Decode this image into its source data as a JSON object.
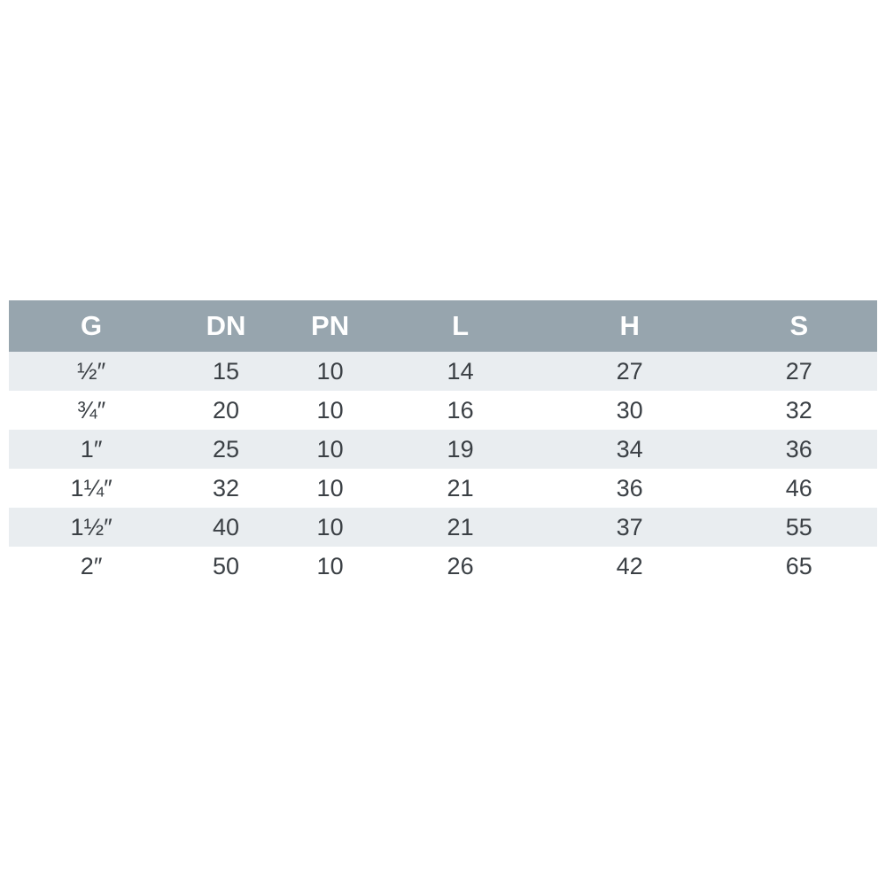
{
  "table": {
    "headers": [
      "G",
      "DN",
      "PN",
      "L",
      "H",
      "S"
    ],
    "rows": [
      [
        "½″",
        "15",
        "10",
        "14",
        "27",
        "27"
      ],
      [
        "¾″",
        "20",
        "10",
        "16",
        "30",
        "32"
      ],
      [
        "1″",
        "25",
        "10",
        "19",
        "34",
        "36"
      ],
      [
        "1¼″",
        "32",
        "10",
        "21",
        "36",
        "46"
      ],
      [
        "1½″",
        "40",
        "10",
        "21",
        "37",
        "55"
      ],
      [
        "2″",
        "50",
        "10",
        "26",
        "42",
        "65"
      ]
    ]
  },
  "chart_data": {
    "type": "table",
    "columns": [
      "G",
      "DN",
      "PN",
      "L",
      "H",
      "S"
    ],
    "rows": [
      [
        "½″",
        15,
        10,
        14,
        27,
        27
      ],
      [
        "¾″",
        20,
        10,
        16,
        30,
        32
      ],
      [
        "1″",
        25,
        10,
        19,
        34,
        36
      ],
      [
        "1¼″",
        32,
        10,
        21,
        36,
        46
      ],
      [
        "1½″",
        40,
        10,
        21,
        37,
        55
      ],
      [
        "2″",
        50,
        10,
        26,
        42,
        65
      ]
    ],
    "title": "",
    "layout": "header row gray, zebra-striped body rows, no vertical gridlines"
  },
  "colors": {
    "header_bg": "#97a5ae",
    "header_text": "#ffffff",
    "stripe_row_bg": "#e9edf0",
    "plain_row_bg": "#ffffff",
    "cell_text": "#3b4045",
    "page_bg": "#ffffff"
  }
}
